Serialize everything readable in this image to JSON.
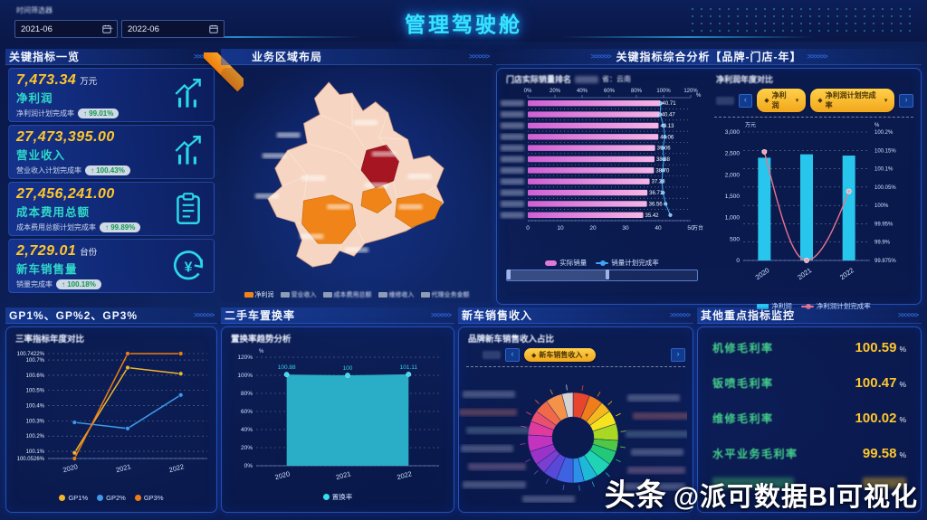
{
  "header": {
    "title": "管理驾驶舱",
    "filter_label": "时间筛选器",
    "date_from": "2021-06",
    "date_to": "2022-06",
    "date_separator": "-"
  },
  "decor": {
    "chevrons": ">>>>>>"
  },
  "kpi": {
    "title": "关键指标一览",
    "cards": [
      {
        "value": "7,473.34",
        "unit": "万元",
        "name": "净利润",
        "sub_label": "净利润计划完成率",
        "arrow": "↑",
        "badge": "99.01%",
        "icon": "growth-chart-icon"
      },
      {
        "value": "27,473,395.00",
        "unit": "",
        "name": "营业收入",
        "sub_label": "营业收入计划完成率",
        "arrow": "↑",
        "badge": "100.43%",
        "icon": "growth-chart-icon"
      },
      {
        "value": "27,456,241.00",
        "unit": "",
        "name": "成本费用总额",
        "sub_label": "成本费用总额计划完成率",
        "arrow": "↑",
        "badge": "99.89%",
        "icon": "clipboard-icon"
      },
      {
        "value": "2,729.01",
        "unit": "台份",
        "name": "新车销售量",
        "sub_label": "销量完成率",
        "arrow": "↑",
        "badge": "100.18%",
        "icon": "yuan-cycle-icon"
      }
    ]
  },
  "map": {
    "title": "业务区域布局",
    "legend": [
      {
        "label": "净利润",
        "color": "#f08418",
        "censored": false
      },
      {
        "label": "营业收入",
        "color": "#8f9cb5",
        "censored": true
      },
      {
        "label": "成本费用总额",
        "color": "#8f9cb5",
        "censored": true
      },
      {
        "label": "维修收入",
        "color": "#8f9cb5",
        "censored": true
      },
      {
        "label": "代理业务金额",
        "color": "#8f9cb5",
        "censored": true
      }
    ],
    "colors": {
      "base": "#f6d6c2",
      "orange": "#f08418",
      "dark_red": "#a51522"
    }
  },
  "analysis": {
    "title": "关键指标综合分析【品牌-门店-年】",
    "ranking": {
      "subtitle": "门店实际销量排名",
      "region_label": "省：云南",
      "top_axis": [
        "0%",
        "20%",
        "40%",
        "60%",
        "80%",
        "100%",
        "120%"
      ],
      "top_axis_unit": "%",
      "bottom_axis": [
        "0",
        "10",
        "20",
        "30",
        "40",
        "50"
      ],
      "bottom_axis_unit": "万台",
      "values": [
        40.71,
        40.47,
        40.13,
        40.06,
        39.06,
        38.88,
        38.7,
        37.38,
        36.71,
        36.56,
        35.42
      ],
      "completion_pct": [
        98,
        97.5,
        100,
        101,
        99.5,
        100.2,
        99.4,
        98.8,
        99.6,
        101.5,
        105
      ],
      "legend": [
        "实际销量",
        "销量计划完成率"
      ],
      "bar_color_left": "#cf5fd4",
      "bar_color_right": "#f6b6e6",
      "line_color": "#3fa4f2"
    },
    "combo": {
      "subtitle": "净利润年度对比",
      "buttons": [
        "净利润",
        "净利润计划完成率"
      ],
      "nav_prev": "‹",
      "nav_next": "›",
      "categories": [
        "2020",
        "2021",
        "2022"
      ],
      "bar_values": [
        2400,
        2480,
        2450
      ],
      "line_values": [
        100.15,
        99.875,
        100.05
      ],
      "left_axis": [
        "3,000",
        "2,500",
        "2,000",
        "1,500",
        "1,000",
        "500",
        "0"
      ],
      "left_unit": "万元",
      "right_axis": [
        "100.2%",
        "100.15%",
        "100.1%",
        "100.05%",
        "100%",
        "99.95%",
        "99.9%",
        "99.875%"
      ],
      "right_unit": "%",
      "legend": [
        "净利润",
        "净利润计划完成率"
      ],
      "bar_color": "#28c6ec",
      "line_color": "#e8728e"
    }
  },
  "gp": {
    "title": "GP1%、GP%2、GP3%",
    "subtitle": "三率指标年度对比",
    "categories": [
      "2020",
      "2021",
      "2022"
    ],
    "y_labels": [
      "100.7422%",
      "100.7%",
      "100.6%",
      "100.5%",
      "100.4%",
      "100.3%",
      "100.2%",
      "100.1%",
      "100.0526%"
    ],
    "y_values": [
      100.7422,
      100.7,
      100.6,
      100.5,
      100.4,
      100.3,
      100.2,
      100.1,
      100.0526
    ],
    "series": [
      {
        "name": "GP1%",
        "color": "#f2b62c",
        "values": [
          100.09,
          100.65,
          100.61
        ]
      },
      {
        "name": "GP2%",
        "color": "#3f9be8",
        "values": [
          100.29,
          100.25,
          100.47
        ]
      },
      {
        "name": "GP3%",
        "color": "#ef7e12",
        "values": [
          100.0526,
          100.7422,
          100.7422
        ]
      }
    ]
  },
  "replace": {
    "title": "二手车置换率",
    "subtitle": "置换率趋势分析",
    "categories": [
      "2020",
      "2021",
      "2022"
    ],
    "values": [
      100.88,
      100,
      101.11
    ],
    "labels": [
      "100.88",
      "100",
      "101.11"
    ],
    "y_labels": [
      "120%",
      "100%",
      "80%",
      "60%",
      "40%",
      "20%",
      "0%"
    ],
    "y_unit": "%",
    "legend": "置换率",
    "color": "#2cb5cd"
  },
  "newcar": {
    "title": "新车销售收入",
    "subtitle": "品牌新车销售收入占比",
    "button": "新车销售收入",
    "nav_prev": "‹",
    "nav_next": "›",
    "slices": [
      6,
      5,
      4,
      5,
      6,
      4,
      5,
      6,
      5,
      4,
      6,
      5,
      4,
      5,
      6,
      5,
      4,
      5,
      6,
      4
    ],
    "colors": [
      "#e8452f",
      "#f07d1a",
      "#f5b91e",
      "#f5e31e",
      "#a8d822",
      "#4fc943",
      "#22c978",
      "#1fd3b4",
      "#1fb9d8",
      "#2f8fe8",
      "#3f62e0",
      "#5a48d8",
      "#7a3fd0",
      "#9c33c9",
      "#c233c0",
      "#e03a9e",
      "#ea4f72",
      "#f06a4a",
      "#f5924a",
      "#d4d4d4"
    ]
  },
  "monitor": {
    "title": "其他重点指标监控",
    "rows": [
      {
        "label": "机修毛利率",
        "value": "100.59",
        "unit": "%"
      },
      {
        "label": "钣喷毛利率",
        "value": "100.47",
        "unit": "%"
      },
      {
        "label": "维修毛利率",
        "value": "100.02",
        "unit": "%"
      },
      {
        "label": "水平业务毛利率",
        "value": "99.58",
        "unit": "%"
      }
    ]
  },
  "watermark": {
    "prefix": "头条",
    "handle": "@派可数据BI可视化"
  },
  "chart_data": [
    {
      "type": "bar",
      "orientation": "horizontal",
      "title": "门店实际销量排名",
      "categories": [
        "(censored)×11"
      ],
      "values": [
        40.71,
        40.47,
        40.13,
        40.06,
        39.06,
        38.88,
        38.7,
        37.38,
        36.71,
        36.56,
        35.42
      ],
      "series2": {
        "name": "销量计划完成率",
        "values": [
          98,
          97.5,
          100,
          101,
          99.5,
          100.2,
          99.4,
          98.8,
          99.6,
          101.5,
          105
        ]
      },
      "xlabel": "万台",
      "xlim": [
        0,
        50
      ],
      "x2lim": [
        "0%",
        "120%"
      ],
      "legend": [
        "实际销量",
        "销量计划完成率"
      ]
    },
    {
      "type": "bar",
      "title": "净利润年度对比",
      "categories": [
        "2020",
        "2021",
        "2022"
      ],
      "series": [
        {
          "name": "净利润",
          "values": [
            2400,
            2480,
            2450
          ]
        },
        {
          "name": "净利润计划完成率",
          "values": [
            100.15,
            99.875,
            100.05
          ]
        }
      ],
      "ylabel": "万元",
      "ylim": [
        0,
        3000
      ],
      "y2lim": [
        99.875,
        100.2
      ]
    },
    {
      "type": "line",
      "title": "三率指标年度对比",
      "categories": [
        "2020",
        "2021",
        "2022"
      ],
      "series": [
        {
          "name": "GP1%",
          "values": [
            100.09,
            100.65,
            100.61
          ]
        },
        {
          "name": "GP2%",
          "values": [
            100.29,
            100.25,
            100.47
          ]
        },
        {
          "name": "GP3%",
          "values": [
            100.0526,
            100.7422,
            100.7422
          ]
        }
      ],
      "ylim": [
        100.0526,
        100.7422
      ]
    },
    {
      "type": "area",
      "title": "置换率趋势分析",
      "categories": [
        "2020",
        "2021",
        "2022"
      ],
      "values": [
        100.88,
        100,
        101.11
      ],
      "ylim": [
        0,
        120
      ],
      "legend": [
        "置换率"
      ]
    },
    {
      "type": "pie",
      "title": "品牌新车销售收入占比",
      "values": [
        6,
        5,
        4,
        5,
        6,
        4,
        5,
        6,
        5,
        4,
        6,
        5,
        4,
        5,
        6,
        5,
        4,
        5,
        6,
        4
      ],
      "labels": "censored"
    }
  ]
}
